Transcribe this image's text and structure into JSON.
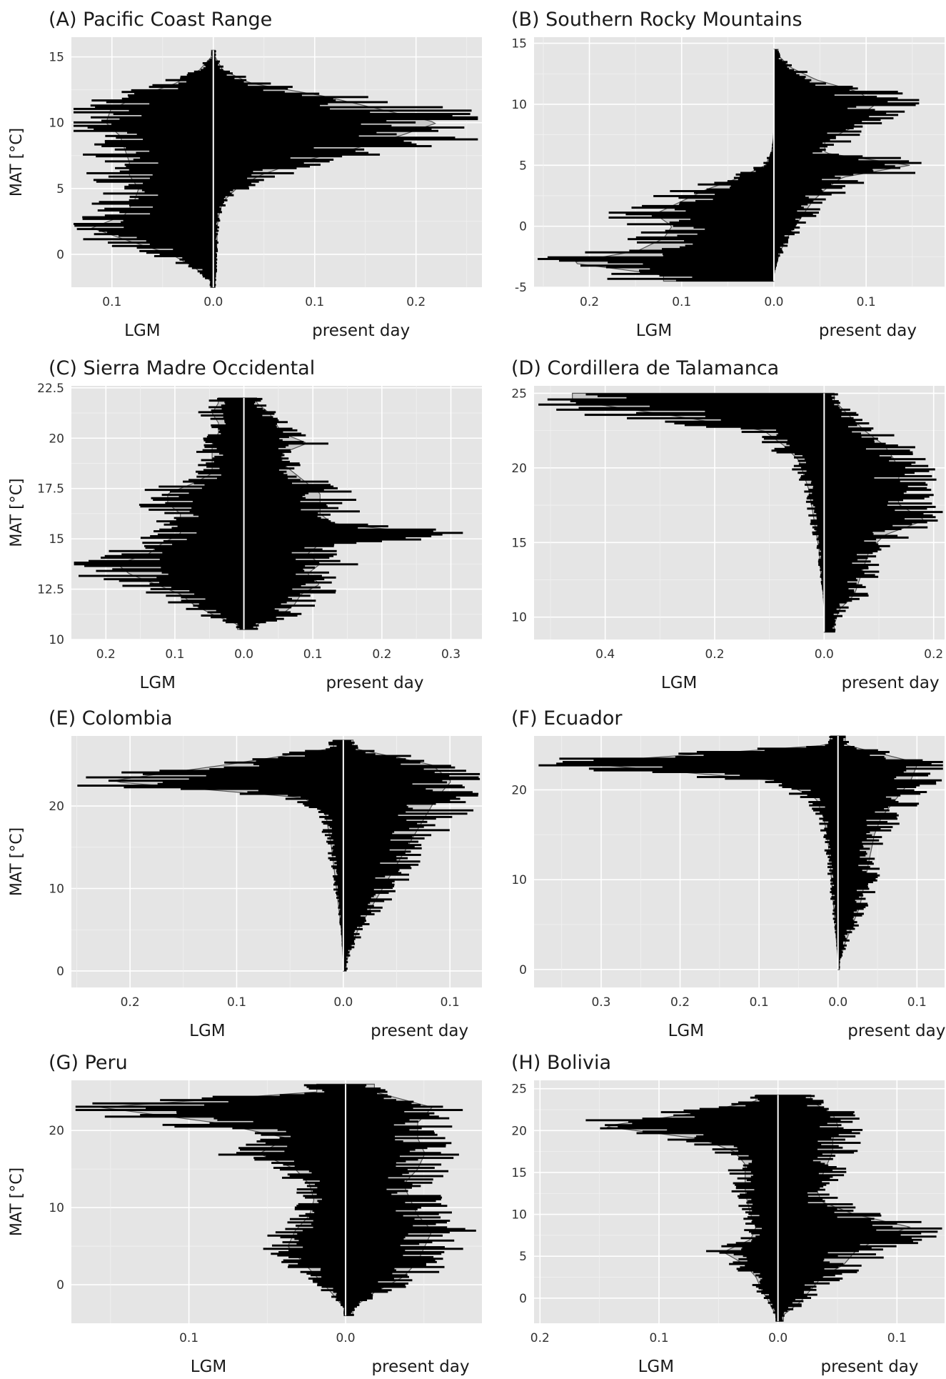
{
  "figure": {
    "ylabel": "MAT [°C]",
    "xlabel_left": "LGM",
    "xlabel_right": "present day"
  },
  "chart_data": [
    {
      "type": "bar",
      "id": "A",
      "title": "(A) Pacific Coast Range",
      "ylim": [
        -2.5,
        16.5
      ],
      "y_ticks": [
        0,
        5,
        10,
        15
      ],
      "y_tick_labels": [
        "0",
        "5",
        "10",
        "15"
      ],
      "xlim_left": 0.14,
      "xlim_right": 0.265,
      "x_ticks_left": [
        0.1
      ],
      "x_ticks_right": [
        0.1,
        0.2
      ],
      "x_tick_labels_left": [
        "0.1"
      ],
      "x_tick_labels_right": [
        "0.1",
        "0.2"
      ],
      "y": [
        -2,
        -1,
        0,
        1,
        2,
        3,
        4,
        5,
        6,
        7,
        8,
        9,
        10,
        11,
        12,
        13,
        14,
        15
      ],
      "lgm": [
        0.003,
        0.02,
        0.045,
        0.09,
        0.13,
        0.095,
        0.085,
        0.08,
        0.09,
        0.09,
        0.095,
        0.1,
        0.115,
        0.11,
        0.08,
        0.04,
        0.015,
        0.002
      ],
      "present": [
        0.002,
        0.003,
        0.003,
        0.004,
        0.004,
        0.006,
        0.01,
        0.025,
        0.05,
        0.09,
        0.15,
        0.2,
        0.24,
        0.18,
        0.12,
        0.04,
        0.01,
        0.002
      ]
    },
    {
      "type": "bar",
      "id": "B",
      "title": "(B) Southern Rocky Mountains",
      "ylim": [
        -5.0,
        15.5
      ],
      "y_ticks": [
        -5,
        0,
        5,
        10,
        15
      ],
      "y_tick_labels": [
        "-5",
        "0",
        "5",
        "10",
        "15"
      ],
      "xlim_left": 0.26,
      "xlim_right": 0.185,
      "x_ticks_left": [
        0.1,
        0.2
      ],
      "x_ticks_right": [
        0.1
      ],
      "x_tick_labels_left": [
        "0.1",
        "0.2"
      ],
      "x_tick_labels_right": [
        "0.1"
      ],
      "y": [
        -4,
        -3,
        -2,
        -1,
        0,
        1,
        2,
        3,
        4,
        5,
        6,
        7,
        8,
        9,
        10,
        11,
        12,
        13,
        14
      ],
      "lgm": [
        0.13,
        0.24,
        0.16,
        0.13,
        0.12,
        0.14,
        0.11,
        0.08,
        0.04,
        0.01,
        0.003,
        0.001,
        0.0,
        0.0,
        0.0,
        0.0,
        0.0,
        0.0,
        0.0
      ],
      "present": [
        0.0,
        0.003,
        0.008,
        0.015,
        0.025,
        0.035,
        0.045,
        0.06,
        0.08,
        0.16,
        0.06,
        0.06,
        0.09,
        0.1,
        0.12,
        0.1,
        0.05,
        0.02,
        0.005
      ]
    },
    {
      "type": "bar",
      "id": "C",
      "title": "(C) Sierra Madre Occidental",
      "ylim": [
        10.0,
        22.6
      ],
      "y_ticks": [
        10,
        12.5,
        15,
        17.5,
        20,
        22.5
      ],
      "y_tick_labels": [
        "10",
        "12.5",
        "15",
        "17.5",
        "20",
        "22.5"
      ],
      "xlim_left": 0.25,
      "xlim_right": 0.345,
      "x_ticks_left": [
        0.1,
        0.2
      ],
      "x_ticks_right": [
        0.1,
        0.2,
        0.3
      ],
      "x_tick_labels_left": [
        "0.1",
        "0.2"
      ],
      "x_tick_labels_right": [
        "0.1",
        "0.2",
        "0.3"
      ],
      "y": [
        10.75,
        11.25,
        11.75,
        12.25,
        12.75,
        13.25,
        13.75,
        14.25,
        14.75,
        15.25,
        15.75,
        16.25,
        16.75,
        17.25,
        17.75,
        18.25,
        18.75,
        19.25,
        19.75,
        20.25,
        20.75,
        21.25,
        21.75
      ],
      "lgm": [
        0.01,
        0.05,
        0.08,
        0.1,
        0.14,
        0.18,
        0.2,
        0.15,
        0.13,
        0.1,
        0.1,
        0.1,
        0.12,
        0.12,
        0.08,
        0.05,
        0.05,
        0.05,
        0.05,
        0.04,
        0.04,
        0.05,
        0.04
      ],
      "present": [
        0.02,
        0.06,
        0.08,
        0.09,
        0.12,
        0.1,
        0.12,
        0.1,
        0.12,
        0.3,
        0.14,
        0.12,
        0.12,
        0.12,
        0.1,
        0.08,
        0.06,
        0.06,
        0.1,
        0.06,
        0.05,
        0.04,
        0.02
      ]
    },
    {
      "type": "bar",
      "id": "D",
      "title": "(D) Cordillera de Talamanca",
      "ylim": [
        8.5,
        25.5
      ],
      "y_ticks": [
        10,
        15,
        20,
        25
      ],
      "y_tick_labels": [
        "10",
        "15",
        "20",
        "25"
      ],
      "xlim_left": 0.53,
      "xlim_right": 0.22,
      "x_ticks_left": [
        0.2,
        0.4
      ],
      "x_ticks_right": [
        0.2
      ],
      "x_tick_labels_left": [
        "0.2",
        "0.4"
      ],
      "x_tick_labels_right": [
        "0.2"
      ],
      "y": [
        9.5,
        10.5,
        11.5,
        12.5,
        13.5,
        14.5,
        15.5,
        16.5,
        17.5,
        18.5,
        19.5,
        20.5,
        21.5,
        22.5,
        23.5,
        24.5
      ],
      "lgm": [
        0.0,
        0.0,
        0.002,
        0.005,
        0.008,
        0.01,
        0.015,
        0.02,
        0.025,
        0.03,
        0.04,
        0.05,
        0.08,
        0.12,
        0.3,
        0.5
      ],
      "present": [
        0.02,
        0.03,
        0.06,
        0.07,
        0.08,
        0.09,
        0.12,
        0.2,
        0.15,
        0.14,
        0.15,
        0.14,
        0.12,
        0.08,
        0.05,
        0.02
      ]
    },
    {
      "type": "bar",
      "id": "E",
      "title": "(E) Colombia",
      "ylim": [
        -2.0,
        28.5
      ],
      "y_ticks": [
        0,
        10,
        20
      ],
      "y_tick_labels": [
        "0",
        "10",
        "20"
      ],
      "xlim_left": 0.255,
      "xlim_right": 0.13,
      "x_ticks_left": [
        0.1,
        0.2
      ],
      "x_ticks_right": [
        0.1
      ],
      "x_tick_labels_left": [
        "0.1",
        "0.2"
      ],
      "x_tick_labels_right": [
        "0.1"
      ],
      "y": [
        1,
        3,
        5,
        7,
        9,
        11,
        13,
        15,
        17,
        19,
        21,
        23,
        25,
        27
      ],
      "lgm": [
        0.0,
        0.001,
        0.002,
        0.004,
        0.006,
        0.008,
        0.01,
        0.012,
        0.015,
        0.018,
        0.04,
        0.24,
        0.12,
        0.01
      ],
      "present": [
        0.003,
        0.008,
        0.015,
        0.025,
        0.035,
        0.045,
        0.055,
        0.065,
        0.075,
        0.085,
        0.095,
        0.11,
        0.09,
        0.01
      ]
    },
    {
      "type": "bar",
      "id": "F",
      "title": "(F) Ecuador",
      "ylim": [
        -2.0,
        26.0
      ],
      "y_ticks": [
        0,
        10,
        20
      ],
      "y_tick_labels": [
        "0",
        "10",
        "20"
      ],
      "xlim_left": 0.385,
      "xlim_right": 0.135,
      "x_ticks_left": [
        0.1,
        0.2,
        0.3
      ],
      "x_ticks_right": [
        0.1
      ],
      "x_tick_labels_left": [
        "0.1",
        "0.2",
        "0.3"
      ],
      "x_tick_labels_right": [
        "0.1"
      ],
      "y": [
        1,
        3,
        5,
        7,
        9,
        11,
        13,
        15,
        17,
        19,
        21,
        23,
        25
      ],
      "lgm": [
        0.0,
        0.002,
        0.004,
        0.006,
        0.008,
        0.01,
        0.012,
        0.015,
        0.02,
        0.03,
        0.08,
        0.36,
        0.01
      ],
      "present": [
        0.002,
        0.01,
        0.02,
        0.03,
        0.035,
        0.04,
        0.045,
        0.05,
        0.06,
        0.08,
        0.1,
        0.11,
        0.01
      ]
    },
    {
      "type": "bar",
      "id": "G",
      "title": "(G) Peru",
      "ylim": [
        -5.0,
        26.5
      ],
      "y_ticks": [
        0,
        10,
        20
      ],
      "y_tick_labels": [
        "0",
        "10",
        "20"
      ],
      "xlim_left": 0.175,
      "xlim_right": 0.087,
      "x_ticks_left": [
        0.1
      ],
      "x_ticks_right": [],
      "x_tick_labels_left": [
        "0.1"
      ],
      "x_tick_labels_right": [],
      "y": [
        -3,
        -1,
        1,
        3,
        5,
        7,
        9,
        11,
        13,
        15,
        17,
        19,
        21,
        23,
        25
      ],
      "lgm": [
        0.001,
        0.01,
        0.02,
        0.03,
        0.04,
        0.035,
        0.025,
        0.022,
        0.025,
        0.035,
        0.06,
        0.04,
        0.09,
        0.17,
        0.02
      ],
      "present": [
        0.005,
        0.02,
        0.04,
        0.05,
        0.055,
        0.06,
        0.05,
        0.045,
        0.04,
        0.05,
        0.055,
        0.05,
        0.05,
        0.06,
        0.02
      ]
    },
    {
      "type": "bar",
      "id": "H",
      "title": "(H) Bolivia",
      "ylim": [
        -3.0,
        26.0
      ],
      "y_ticks": [
        0,
        5,
        10,
        15,
        20,
        25
      ],
      "y_tick_labels": [
        "0",
        "5",
        "10",
        "15",
        "20",
        "25"
      ],
      "xlim_left": 0.205,
      "xlim_right": 0.14,
      "x_ticks_left": [
        0.1,
        0.2
      ],
      "x_ticks_right": [
        0.1
      ],
      "x_tick_labels_left": [
        "0.1",
        "0.2"
      ],
      "x_tick_labels_right": [
        "0.1"
      ],
      "y": [
        -2,
        -0.5,
        1,
        2.5,
        4,
        5.5,
        7,
        8.5,
        10,
        11.5,
        13,
        14.5,
        16,
        17.5,
        19,
        20.5,
        22,
        23.5
      ],
      "lgm": [
        0.002,
        0.008,
        0.015,
        0.02,
        0.03,
        0.05,
        0.025,
        0.02,
        0.025,
        0.028,
        0.03,
        0.03,
        0.03,
        0.04,
        0.07,
        0.16,
        0.08,
        0.02
      ],
      "present": [
        0.005,
        0.02,
        0.03,
        0.04,
        0.06,
        0.07,
        0.09,
        0.12,
        0.07,
        0.04,
        0.035,
        0.04,
        0.045,
        0.05,
        0.05,
        0.055,
        0.05,
        0.03
      ]
    }
  ]
}
